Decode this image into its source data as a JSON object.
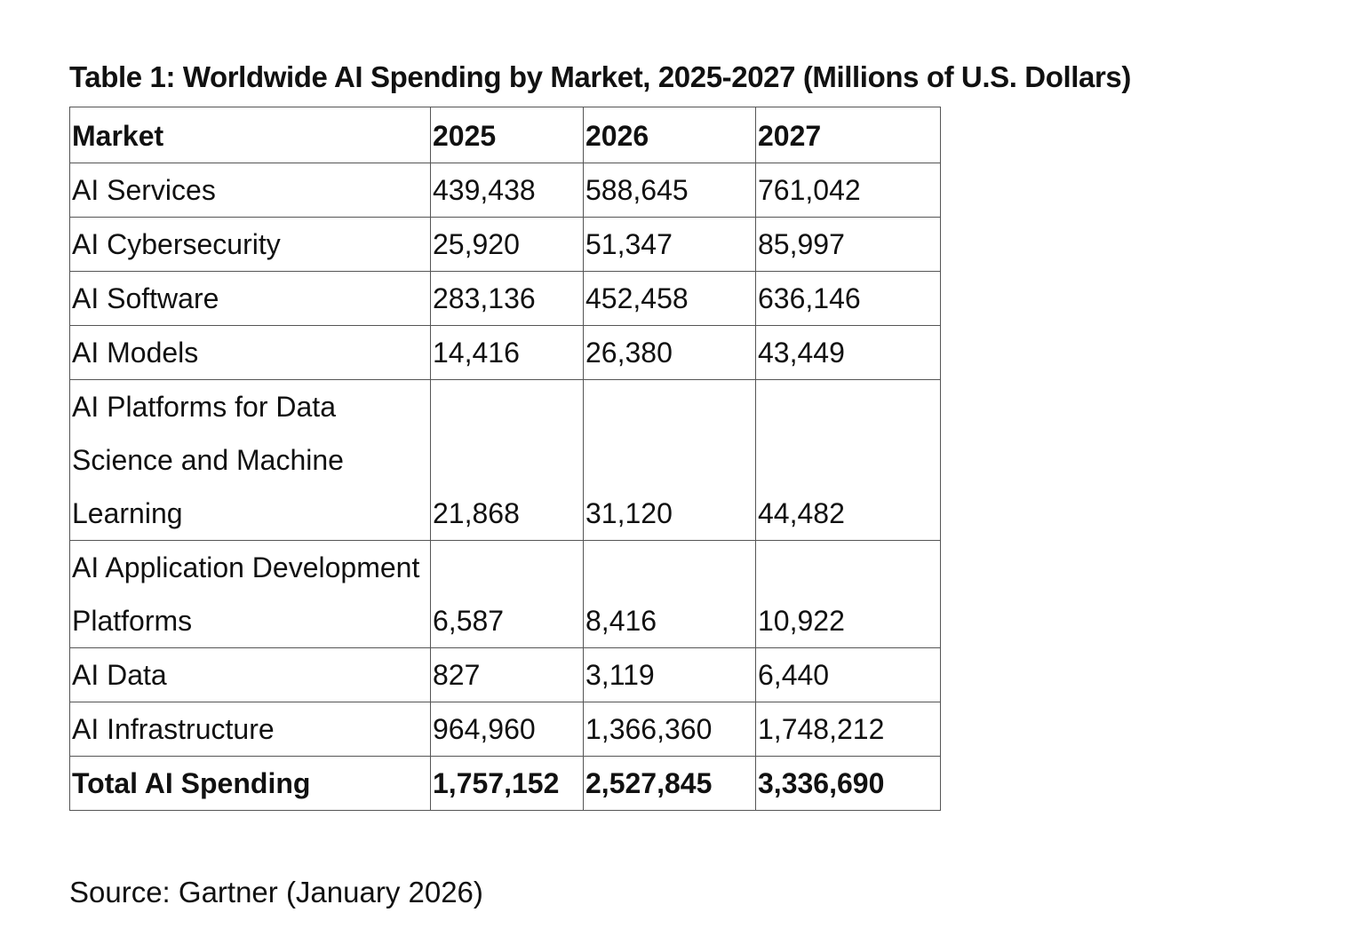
{
  "title": "Table 1: Worldwide AI Spending by Market, 2025-2027 (Millions of U.S. Dollars)",
  "table": {
    "headers": [
      "Market",
      "2025",
      "2026",
      "2027"
    ],
    "rows": [
      [
        "AI Services",
        "439,438",
        "588,645",
        "761,042"
      ],
      [
        "AI Cybersecurity",
        "25,920",
        "51,347",
        "85,997"
      ],
      [
        "AI Software",
        "283,136",
        "452,458",
        "636,146"
      ],
      [
        "AI Models",
        "14,416",
        "26,380",
        "43,449"
      ],
      [
        "AI Platforms for Data Science and Machine Learning",
        "21,868",
        "31,120",
        "44,482"
      ],
      [
        "AI Application Development Platforms",
        "6,587",
        "8,416",
        "10,922"
      ],
      [
        "AI Data",
        "827",
        "3,119",
        "6,440"
      ],
      [
        "AI Infrastructure",
        "964,960",
        "1,366,360",
        "1,748,212"
      ]
    ],
    "total": [
      "Total AI Spending",
      "1,757,152",
      "2,527,845",
      "3,336,690"
    ]
  },
  "source": "Source: Gartner (January 2026)"
}
